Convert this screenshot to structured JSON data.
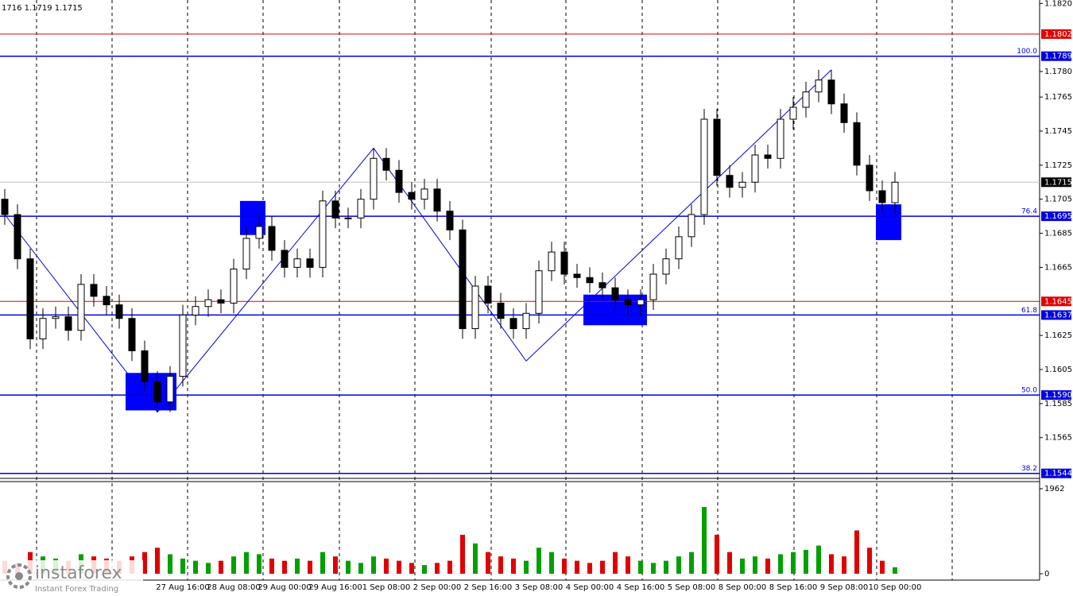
{
  "chart_data": {
    "type": "candlestick",
    "header": "1716 1.1719 1.1715",
    "logo": {
      "brand": "instaforex",
      "tagline": "Instant Forex Trading"
    },
    "ylim": [
      1.1542,
      1.1822
    ],
    "yticks": [
      {
        "value": 1.182,
        "label": "1.1820"
      },
      {
        "value": 1.178,
        "label": "1.1780"
      },
      {
        "value": 1.1765,
        "label": "1.1765"
      },
      {
        "value": 1.1745,
        "label": "1.1745"
      },
      {
        "value": 1.1725,
        "label": "1.1725"
      },
      {
        "value": 1.1705,
        "label": "1.1705"
      },
      {
        "value": 1.1685,
        "label": "1.1685"
      },
      {
        "value": 1.1665,
        "label": "1.1665"
      },
      {
        "value": 1.1625,
        "label": "1.1625"
      },
      {
        "value": 1.1605,
        "label": "1.1605"
      },
      {
        "value": 1.1585,
        "label": "1.1585"
      },
      {
        "value": 1.1565,
        "label": "1.1565"
      }
    ],
    "categories": [
      null,
      null,
      null,
      null,
      null,
      null,
      null,
      null,
      null,
      null,
      null,
      null,
      null,
      null,
      "27 Aug 16:00",
      null,
      null,
      null,
      "28 Aug 08:00",
      null,
      null,
      null,
      "29 Aug 00:00",
      null,
      null,
      null,
      "29 Aug 16:00",
      null,
      null,
      null,
      "1 Sep 08:00",
      null,
      null,
      null,
      "2 Sep 00:00",
      null,
      null,
      null,
      "2 Sep 16:00",
      null,
      null,
      null,
      "3 Sep 08:00",
      null,
      null,
      null,
      "4 Sep 00:00",
      null,
      null,
      null,
      "4 Sep 16:00",
      null,
      null,
      null,
      "5 Sep 08:00",
      null,
      null,
      null,
      "8 Sep 00:00",
      null,
      null,
      null,
      "8 Sep 16:00",
      null,
      null,
      null,
      "9 Sep 08:00",
      null,
      null,
      null,
      "10 Sep 00:00"
    ],
    "open": [
      1.1705,
      1.1696,
      1.167,
      1.1623,
      1.1635,
      1.1636,
      1.1628,
      1.1655,
      1.1648,
      1.1643,
      1.1635,
      1.1616,
      1.1598,
      1.1586,
      1.1601,
      1.1637,
      1.1642,
      1.1646,
      1.1644,
      1.1664,
      1.1682,
      1.1689,
      1.1675,
      1.1665,
      1.167,
      1.1665,
      1.1704,
      1.1694,
      1.1694,
      1.1705,
      1.1729,
      1.1722,
      1.1709,
      1.1705,
      1.1711,
      1.1698,
      1.1687,
      1.1629,
      1.1654,
      1.1644,
      1.1635,
      1.1629,
      1.1638,
      1.1663,
      1.1674,
      1.1661,
      1.1659,
      1.1656,
      1.1653,
      1.1646,
      1.1643,
      1.1646,
      1.1661,
      1.167,
      1.1683,
      1.1696,
      1.1752,
      1.1719,
      1.1712,
      1.1715,
      1.1731,
      1.1729,
      1.1752,
      1.1759,
      1.1768,
      1.1775,
      1.1761,
      1.175,
      1.1725,
      1.171,
      1.1703
    ],
    "high": [
      1.1711,
      1.1702,
      1.1676,
      1.1641,
      1.1642,
      1.1642,
      1.1661,
      1.1661,
      1.1654,
      1.1649,
      1.1641,
      1.1622,
      1.1604,
      1.1607,
      1.1643,
      1.1648,
      1.1652,
      1.1652,
      1.167,
      1.1688,
      1.1695,
      1.1695,
      1.1681,
      1.1676,
      1.1676,
      1.171,
      1.171,
      1.17,
      1.1711,
      1.1735,
      1.1735,
      1.1728,
      1.1715,
      1.1717,
      1.1717,
      1.1704,
      1.1693,
      1.166,
      1.166,
      1.165,
      1.1641,
      1.1644,
      1.1669,
      1.168,
      1.168,
      1.1667,
      1.1665,
      1.1662,
      1.1659,
      1.1652,
      1.1652,
      1.1667,
      1.1676,
      1.1689,
      1.1702,
      1.1758,
      1.1758,
      1.1725,
      1.1721,
      1.1737,
      1.1737,
      1.1758,
      1.1765,
      1.1774,
      1.1781,
      1.1781,
      1.1767,
      1.1756,
      1.1731,
      1.1716,
      1.1721
    ],
    "low": [
      1.169,
      1.1664,
      1.1617,
      1.1617,
      1.1629,
      1.1622,
      1.1622,
      1.1642,
      1.1637,
      1.1629,
      1.161,
      1.1592,
      1.158,
      1.158,
      1.1595,
      1.1631,
      1.1636,
      1.1638,
      1.1638,
      1.1658,
      1.1676,
      1.1669,
      1.1659,
      1.1659,
      1.1659,
      1.1659,
      1.1688,
      1.1688,
      1.1688,
      1.1699,
      1.1716,
      1.1703,
      1.1699,
      1.1699,
      1.1692,
      1.1681,
      1.1623,
      1.1623,
      1.1638,
      1.1629,
      1.1623,
      1.1623,
      1.1632,
      1.1657,
      1.1655,
      1.1653,
      1.165,
      1.1647,
      1.164,
      1.1637,
      1.1637,
      1.164,
      1.1655,
      1.1664,
      1.1677,
      1.169,
      1.1713,
      1.1706,
      1.1706,
      1.1709,
      1.1723,
      1.1723,
      1.1746,
      1.1753,
      1.1762,
      1.1755,
      1.1744,
      1.1719,
      1.1704,
      1.1697,
      1.1697
    ],
    "close": [
      1.1696,
      1.167,
      1.1623,
      1.1635,
      1.1636,
      1.1628,
      1.1655,
      1.1648,
      1.1643,
      1.1635,
      1.1616,
      1.1598,
      1.1586,
      1.1601,
      1.1637,
      1.1642,
      1.1646,
      1.1644,
      1.1664,
      1.1682,
      1.1689,
      1.1675,
      1.1665,
      1.167,
      1.1665,
      1.1704,
      1.1694,
      1.1694,
      1.1705,
      1.1729,
      1.1722,
      1.1709,
      1.1705,
      1.1711,
      1.1698,
      1.1687,
      1.1629,
      1.1654,
      1.1644,
      1.1635,
      1.1629,
      1.1638,
      1.1663,
      1.1674,
      1.1661,
      1.1659,
      1.1656,
      1.1653,
      1.1646,
      1.1643,
      1.1646,
      1.1661,
      1.167,
      1.1683,
      1.1696,
      1.1752,
      1.1719,
      1.1712,
      1.1715,
      1.1731,
      1.1729,
      1.1752,
      1.1759,
      1.1768,
      1.1775,
      1.1761,
      1.175,
      1.1725,
      1.171,
      1.1703,
      1.1715
    ],
    "volume": [
      300,
      250,
      500,
      400,
      350,
      300,
      450,
      400,
      350,
      300,
      400,
      500,
      600,
      450,
      350,
      300,
      250,
      300,
      400,
      500,
      450,
      350,
      300,
      350,
      300,
      500,
      400,
      300,
      250,
      400,
      350,
      300,
      250,
      200,
      250,
      300,
      900,
      700,
      500,
      400,
      350,
      300,
      600,
      500,
      350,
      300,
      250,
      300,
      500,
      400,
      300,
      250,
      300,
      400,
      500,
      1540,
      900,
      500,
      350,
      400,
      350,
      450,
      500,
      550,
      650,
      450,
      400,
      1000,
      600,
      300,
      150
    ],
    "volume_ylim": [
      0,
      1962
    ],
    "volume_yticks": [
      0,
      1962
    ],
    "up_color": "#00a000",
    "down_color": "#e00000",
    "levels": [
      {
        "value": 1.1802,
        "label": "1.1802",
        "color": "#e00000"
      },
      {
        "value": 1.1789,
        "label": "1.1789",
        "color": "#0000e0",
        "fib": "100.0"
      },
      {
        "value": 1.1695,
        "label": "1.1695",
        "color": "#0000e0",
        "fib": "76.4"
      },
      {
        "value": 1.1645,
        "label": "1.1645",
        "color": "#e00000"
      },
      {
        "value": 1.1637,
        "label": "1.1637",
        "color": "#0000e0",
        "fib": "61.8"
      },
      {
        "value": 1.159,
        "label": "1.1590",
        "color": "#0000e0",
        "fib": "50.0"
      },
      {
        "value": 1.1544,
        "label": "1.1544",
        "color": "#0000e0",
        "fib": "38.2"
      }
    ],
    "last": {
      "value": 1.1715,
      "label": "1.1715"
    },
    "zones": [
      {
        "from": 10,
        "to": 13,
        "high": 1.1603,
        "low": 1.1581
      },
      {
        "from": 19,
        "to": 20,
        "high": 1.1704,
        "low": 1.1684
      },
      {
        "from": 46,
        "to": 50,
        "high": 1.1649,
        "low": 1.1631
      },
      {
        "from": 69,
        "to": 70,
        "high": 1.1702,
        "low": 1.1681
      }
    ],
    "zone_color": "#0000ff",
    "zigzag": {
      "x": [
        0,
        12,
        29,
        41,
        65
      ],
      "values": [
        1.1696,
        1.158,
        1.1735,
        1.161,
        1.1781
      ],
      "color": "#0000e0"
    }
  }
}
